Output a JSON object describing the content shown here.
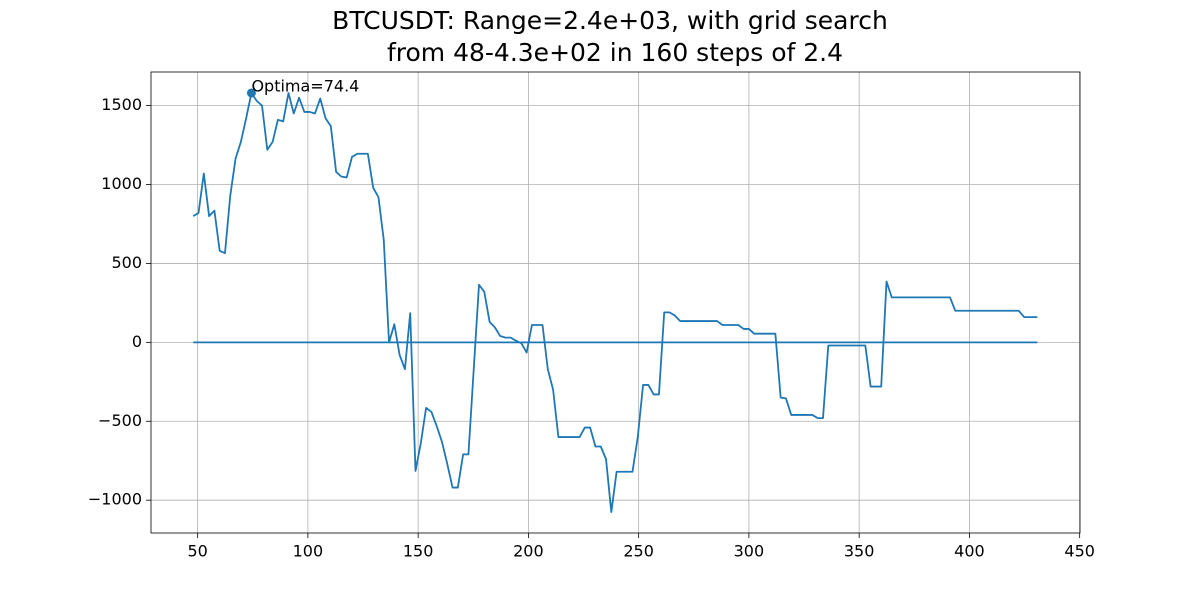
{
  "chart_data": {
    "type": "line",
    "title": [
      "BTCUSDT: Range=2.4e+03, with grid search",
      "from 48-4.3e+02 in 160 steps of 2.4"
    ],
    "series": [
      {
        "color": "#1f77b4",
        "x": [
          48,
          50.4,
          52.8,
          55.2,
          57.6,
          60,
          62.4,
          64.8,
          67.2,
          69.6,
          72,
          74.4,
          76.8,
          79.2,
          81.6,
          84,
          86.4,
          88.8,
          91.2,
          93.6,
          96,
          98.4,
          100.8,
          103.2,
          105.6,
          108,
          110.4,
          112.8,
          115.2,
          117.6,
          120,
          122.4,
          127.2,
          129.6,
          132,
          134.4,
          136.8,
          139.2,
          141.6,
          144,
          146.4,
          148.8,
          151.2,
          153.6,
          156,
          158.4,
          160.8,
          163.2,
          165.6,
          168,
          170.4,
          172.8,
          177.6,
          180,
          182.4,
          184.8,
          187.2,
          189.6,
          192,
          194.4,
          196.8,
          199.2,
          201.6,
          206.4,
          208.8,
          211.2,
          213.6,
          223.2,
          225.6,
          228,
          230.4,
          232.8,
          235.2,
          237.6,
          240,
          247.2,
          249.6,
          252,
          254.4,
          256.8,
          259.2,
          261.6,
          264,
          266.4,
          268.8,
          285.6,
          288,
          295.2,
          297.6,
          300,
          302.4,
          312,
          314.4,
          316.8,
          319.2,
          328.8,
          331.2,
          333.6,
          336,
          352.8,
          355.2,
          360,
          362.4,
          364.8,
          391.2,
          393.6,
          422.4,
          424.8,
          430.8
        ],
        "values": [
          800,
          820,
          1070,
          800,
          835,
          580,
          565,
          930,
          1165,
          1270,
          1420,
          1580,
          1530,
          1500,
          1220,
          1270,
          1410,
          1400,
          1580,
          1450,
          1550,
          1460,
          1460,
          1450,
          1545,
          1420,
          1370,
          1080,
          1050,
          1045,
          1175,
          1195,
          1195,
          980,
          920,
          650,
          0,
          115,
          -80,
          -170,
          185,
          -815,
          -640,
          -415,
          -440,
          -530,
          -630,
          -770,
          -920,
          -920,
          -710,
          -710,
          365,
          320,
          130,
          95,
          40,
          30,
          30,
          10,
          -5,
          -65,
          110,
          110,
          -170,
          -300,
          -600,
          -600,
          -540,
          -540,
          -660,
          -660,
          -740,
          -1075,
          -820,
          -820,
          -600,
          -270,
          -270,
          -330,
          -330,
          190,
          190,
          170,
          135,
          135,
          110,
          110,
          85,
          85,
          55,
          55,
          -350,
          -355,
          -460,
          -460,
          -480,
          -480,
          -20,
          -20,
          -280,
          -280,
          385,
          285,
          285,
          200,
          200,
          160,
          160
        ]
      },
      {
        "color": "#1f77b4",
        "x": [
          48,
          430.8
        ],
        "values": [
          0,
          0
        ]
      }
    ],
    "optima": {
      "x": 74.4,
      "y": 1580,
      "label": "Optima=74.4",
      "color": "#1f77b4"
    },
    "xlim": [
      28.85,
      450.15
    ],
    "xticks": [
      50,
      100,
      150,
      200,
      250,
      300,
      350,
      400,
      450
    ],
    "ylim": [
      -1208,
      1713
    ],
    "yticks": [
      {
        "value": -1000,
        "label": "−1000"
      },
      {
        "value": -500,
        "label": "−500"
      },
      0,
      500,
      1000,
      1500
    ],
    "grid": true
  }
}
